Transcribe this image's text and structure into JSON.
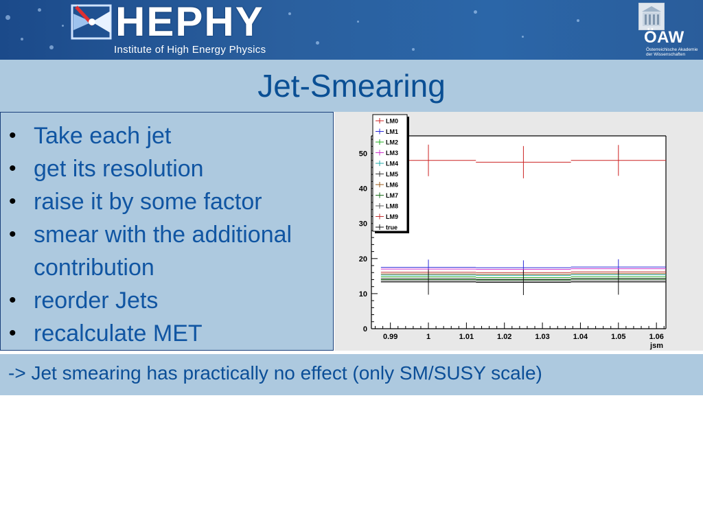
{
  "header": {
    "logo_text": "HEPHY",
    "logo_subtitle": "Institute of High Energy Physics",
    "right_logo_text": "ÖAW",
    "right_logo_subtitle_line1": "Österreichische Akademie",
    "right_logo_subtitle_line2": "der Wissenschaften"
  },
  "slide": {
    "title": "Jet-Smearing",
    "bullets": [
      "Take each jet",
      "get its resolution",
      "raise it by some factor",
      "smear with the additional contribution",
      "reorder Jets",
      "recalculate MET"
    ],
    "note": "-> Jet smearing has practically no effect (only SM/SUSY scale)"
  },
  "colors": {
    "band": "#adc9df",
    "title": "#0a4f94",
    "text": "#1055a2"
  },
  "chart_data": {
    "type": "line",
    "xlabel": "jsm",
    "ylabel": "",
    "xlim": [
      0.985,
      1.0625
    ],
    "ylim": [
      0,
      55
    ],
    "x_ticks": [
      "0.99",
      "1",
      "1.01",
      "1.02",
      "1.03",
      "1.04",
      "1.05",
      "1.06"
    ],
    "y_ticks": [
      "0",
      "10",
      "20",
      "30",
      "40",
      "50"
    ],
    "x_bins": [
      1.0,
      1.025,
      1.05
    ],
    "bin_width": 0.025,
    "legend_position": "top-left",
    "series": [
      {
        "name": "LM0",
        "color": "#cc2222",
        "values": [
          48,
          47.5,
          48
        ],
        "errors": [
          4.5,
          4.6,
          4.4
        ]
      },
      {
        "name": "LM1",
        "color": "#2a2ad6",
        "values": [
          17.5,
          17.4,
          17.6
        ],
        "errors": [
          2.2,
          2.1,
          2.2
        ]
      },
      {
        "name": "LM2",
        "color": "#22aa22",
        "values": [
          14.8,
          14.6,
          14.8
        ],
        "errors": [
          0,
          0,
          0
        ]
      },
      {
        "name": "LM3",
        "color": "#cc33cc",
        "values": [
          17.0,
          16.9,
          17.1
        ],
        "errors": [
          0,
          0,
          0
        ]
      },
      {
        "name": "LM4",
        "color": "#22aaaa",
        "values": [
          15.3,
          15.2,
          15.4
        ],
        "errors": [
          0,
          0,
          0
        ]
      },
      {
        "name": "LM5",
        "color": "#333333",
        "values": [
          14.3,
          14.1,
          14.3
        ],
        "errors": [
          0,
          0,
          0
        ]
      },
      {
        "name": "LM6",
        "color": "#9b5b1a",
        "values": [
          15.6,
          15.5,
          15.7
        ],
        "errors": [
          0,
          0,
          0
        ]
      },
      {
        "name": "LM7",
        "color": "#1a6b1a",
        "values": [
          14.0,
          13.9,
          14.1
        ],
        "errors": [
          0,
          0,
          0
        ]
      },
      {
        "name": "LM8",
        "color": "#555555",
        "values": [
          13.6,
          13.5,
          13.6
        ],
        "errors": [
          0,
          0,
          0
        ]
      },
      {
        "name": "LM9",
        "color": "#c03030",
        "values": [
          16.1,
          16.0,
          16.2
        ],
        "errors": [
          0,
          0,
          0
        ]
      },
      {
        "name": "true",
        "color": "#111111",
        "values": [
          13.3,
          13.2,
          13.3
        ],
        "errors": [
          3.6,
          3.6,
          3.6
        ]
      }
    ]
  }
}
